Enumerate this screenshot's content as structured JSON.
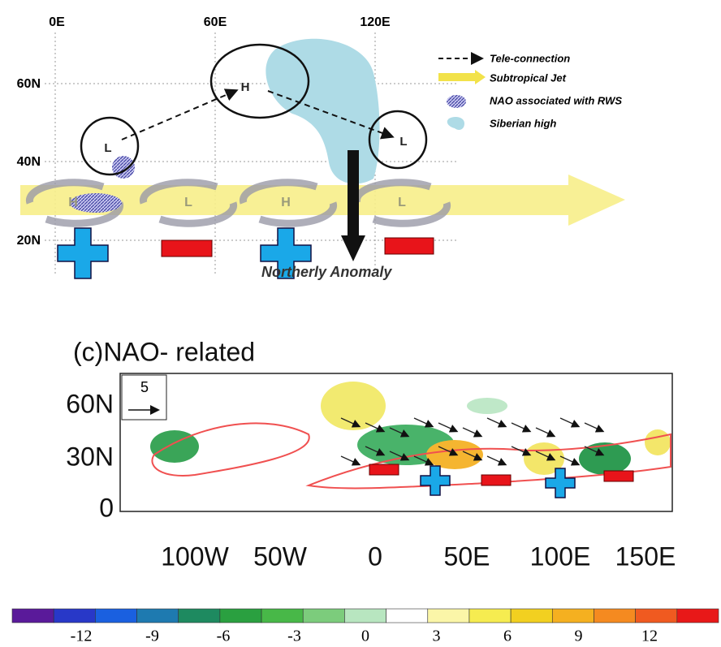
{
  "schematic": {
    "x_labels": [
      "0E",
      "60E",
      "120E"
    ],
    "y_labels": [
      "60N",
      "40N",
      "20N"
    ],
    "circle_centers": [
      "L",
      "H",
      "L"
    ],
    "jet_centers": [
      "H",
      "L",
      "H",
      "L"
    ],
    "legend": [
      "Tele-connection",
      "Subtropical Jet",
      "NAO associated with RWS",
      "Siberian high"
    ],
    "annotation": "Northerly Anomaly"
  },
  "map": {
    "title": "(c)NAO- related",
    "vector_scale": "5",
    "y_labels": [
      "60N",
      "30N",
      "0"
    ],
    "x_labels": [
      "100W",
      "50W",
      "0",
      "50E",
      "100E",
      "150E"
    ]
  },
  "colorbar": {
    "labels": [
      "-12",
      "-9",
      "-6",
      "-3",
      "0",
      "3",
      "6",
      "9",
      "12"
    ]
  }
}
